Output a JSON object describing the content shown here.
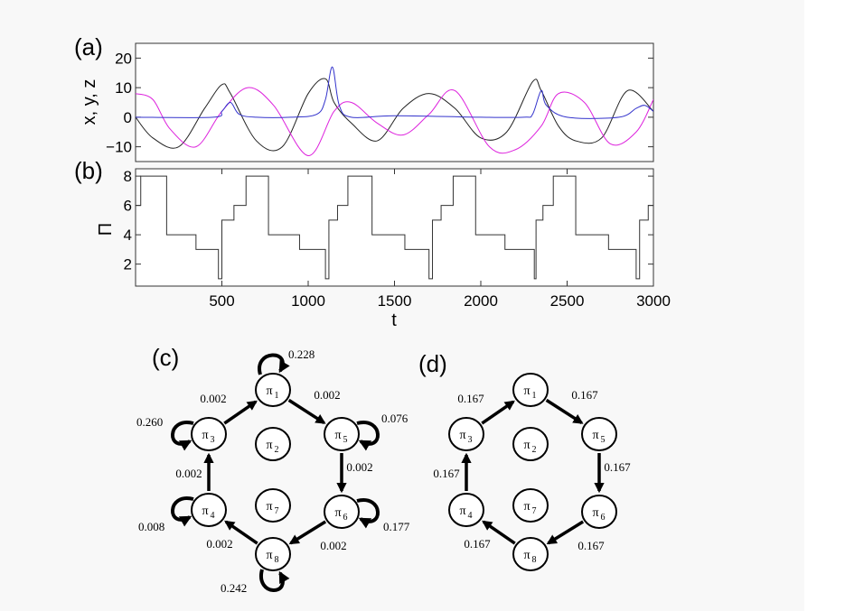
{
  "chart_data": [
    {
      "panel": "(a)",
      "type": "line",
      "ylabel": "x, y, z",
      "xlim": [
        0,
        3000
      ],
      "ylim": [
        -15,
        25
      ],
      "yticks": [
        -10,
        0,
        10,
        20
      ],
      "ytick_labels": [
        "−10",
        "0",
        "10",
        "20"
      ],
      "grid": false,
      "series": [
        {
          "color": "#222222",
          "x": [
            0,
            100,
            250,
            400,
            500,
            550,
            700,
            850,
            1000,
            1100,
            1150,
            1250,
            1400,
            1550,
            1700,
            1850,
            2000,
            2150,
            2300,
            2350,
            2450,
            2550,
            2700,
            2850,
            3000
          ],
          "values": [
            0,
            -7,
            -10,
            3,
            11,
            8,
            -8,
            -10,
            8,
            13,
            5,
            -2,
            -8,
            3,
            8,
            3,
            -7,
            -5,
            12,
            9,
            -3,
            -8,
            -7,
            9,
            2
          ]
        },
        {
          "color": "#dd22dd",
          "x": [
            0,
            100,
            200,
            350,
            500,
            650,
            800,
            1000,
            1150,
            1250,
            1400,
            1550,
            1700,
            1850,
            2050,
            2200,
            2350,
            2450,
            2600,
            2750,
            2900,
            3000
          ],
          "values": [
            8,
            6,
            -4,
            -10,
            2,
            10,
            4,
            -13,
            2,
            5,
            -2,
            -6,
            1,
            9,
            -10,
            -11,
            -3,
            8,
            5,
            -9,
            -5,
            6
          ]
        },
        {
          "color": "#3333cc",
          "x": [
            0,
            450,
            500,
            550,
            600,
            700,
            900,
            1050,
            1100,
            1140,
            1180,
            1250,
            1500,
            2000,
            2250,
            2300,
            2350,
            2380,
            2500,
            2800,
            2900,
            2950,
            3000
          ],
          "values": [
            0,
            0,
            2,
            5,
            1,
            0,
            0,
            1,
            6,
            17,
            4,
            0,
            0.5,
            0,
            0,
            1,
            9,
            4,
            0,
            0,
            3,
            4,
            2
          ]
        }
      ]
    },
    {
      "panel": "(b)",
      "type": "line",
      "xlabel": "t",
      "ylabel": "Π",
      "xlim": [
        0,
        3000
      ],
      "ylim": [
        0.5,
        8.5
      ],
      "yticks": [
        2,
        4,
        6,
        8
      ],
      "ytick_labels": [
        "2",
        "4",
        "6",
        "8"
      ],
      "xticks": [
        500,
        1000,
        1500,
        2000,
        2500,
        3000
      ],
      "xtick_labels": [
        "500",
        "1000",
        "1500",
        "2000",
        "2500",
        "3000"
      ],
      "grid": false,
      "series": [
        {
          "color": "#333333",
          "x": [
            0,
            30,
            170,
            180,
            350,
            480,
            500,
            550,
            570,
            640,
            760,
            770,
            950,
            1100,
            1120,
            1150,
            1170,
            1230,
            1350,
            1370,
            1560,
            1700,
            1720,
            1750,
            1770,
            1840,
            1960,
            1970,
            2140,
            2310,
            2320,
            2350,
            2360,
            2420,
            2540,
            2550,
            2740,
            2900,
            2920,
            2950,
            2970,
            3000
          ],
          "values": [
            6,
            8,
            8,
            4,
            3,
            1,
            5,
            5,
            6,
            8,
            8,
            4,
            3,
            1,
            5,
            5,
            6,
            8,
            8,
            4,
            3,
            1,
            5,
            5,
            6,
            8,
            8,
            4,
            3,
            1,
            5,
            5,
            6,
            8,
            8,
            4,
            3,
            1,
            5,
            5,
            6,
            6
          ]
        }
      ]
    },
    {
      "panel": "(c)",
      "type": "diagram",
      "nodes": [
        "π",
        "π",
        "π",
        "π",
        "π",
        "π",
        "π",
        "π"
      ],
      "node_subscripts": [
        "1",
        "2",
        "3",
        "4",
        "5",
        "6",
        "7",
        "8"
      ],
      "edge_labels": [
        "0.002",
        "0.002",
        "0.002",
        "0.002",
        "0.002",
        "0.002"
      ],
      "self_loop_labels": [
        "0.228",
        "0.076",
        "0.177",
        "0.242",
        "0.008",
        "0.260"
      ]
    },
    {
      "panel": "(d)",
      "type": "diagram",
      "nodes": [
        "π",
        "π",
        "π",
        "π",
        "π",
        "π",
        "π",
        "π"
      ],
      "node_subscripts": [
        "1",
        "2",
        "3",
        "4",
        "5",
        "6",
        "7",
        "8"
      ],
      "edge_labels": [
        "0.167",
        "0.167",
        "0.167",
        "0.167",
        "0.167",
        "0.167"
      ]
    }
  ]
}
